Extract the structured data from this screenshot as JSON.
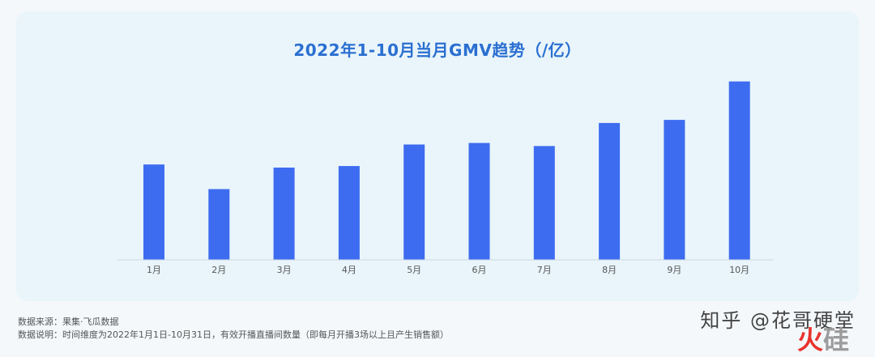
{
  "chart_data": {
    "type": "bar",
    "title": "2022年1-10月当月GMV趋势（/亿）",
    "categories": [
      "1月",
      "2月",
      "3月",
      "4月",
      "5月",
      "6月",
      "7月",
      "8月",
      "9月",
      "10月"
    ],
    "values": [
      62,
      46,
      60,
      61,
      75,
      76,
      74,
      89,
      91,
      116
    ],
    "ylim": [
      0,
      120
    ],
    "grid": false,
    "colors": {
      "bar": "#3d6cf0",
      "axis": "#cfd8df",
      "tick_text": "#555555"
    }
  },
  "notes": {
    "source": "数据来源：果集·飞瓜数据",
    "explanation": "数据说明：时间维度为2022年1月1日-10月31日，有效开播直播间数量（即每月开播3场以上且产生销售额）"
  },
  "watermark": {
    "text": "知乎 @花哥硬堂",
    "logo": "火",
    "logo_rest": "硅"
  }
}
